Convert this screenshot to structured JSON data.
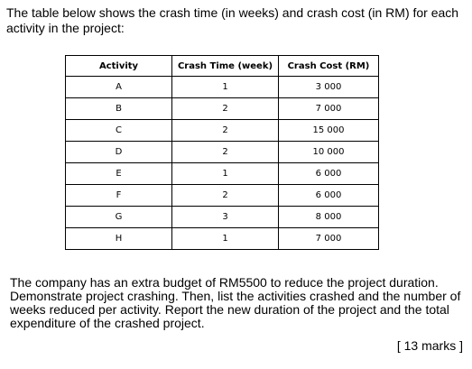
{
  "intro": "The table below shows the crash time (in weeks) and crash cost (in RM) for each activity in the project:",
  "table": {
    "headers": [
      "Activity",
      "Crash Time (week)",
      "Crash Cost (RM)"
    ],
    "rows": [
      [
        "A",
        "1",
        "3 000"
      ],
      [
        "B",
        "2",
        "7 000"
      ],
      [
        "C",
        "2",
        "15 000"
      ],
      [
        "D",
        "2",
        "10 000"
      ],
      [
        "E",
        "1",
        "6 000"
      ],
      [
        "F",
        "2",
        "6 000"
      ],
      [
        "G",
        "3",
        "8 000"
      ],
      [
        "H",
        "1",
        "7 000"
      ]
    ]
  },
  "question": "The company has an extra budget of RM5500 to reduce the project duration. Demonstrate project crashing. Then, list the activities crashed and the number of weeks reduced per activity.  Report the new duration of the project and the total expenditure of the crashed project.",
  "marks": "[ 13 marks ]"
}
